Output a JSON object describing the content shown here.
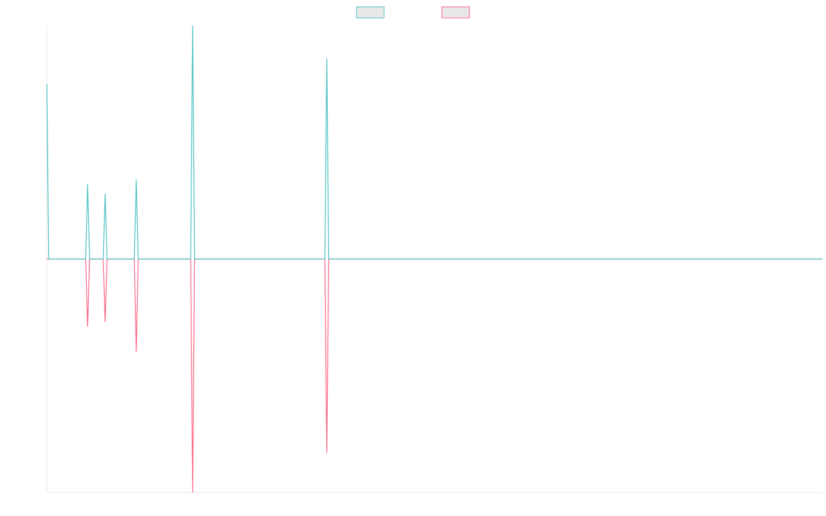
{
  "chart_data": {
    "type": "line",
    "title": "",
    "xlabel": "",
    "ylabel": "",
    "legend_placement": "top-center",
    "grid": false,
    "ylim": [
      -1.0,
      1.0
    ],
    "x": [
      0,
      1,
      20,
      21,
      22,
      29,
      30,
      31,
      45,
      46,
      47,
      74,
      75,
      76,
      143,
      144,
      145,
      399
    ],
    "series": [
      {
        "color": "#4bc0c0",
        "fill": "#e8e8e8",
        "values": [
          0.75,
          0.0,
          0.0,
          0.32,
          0.0,
          0.0,
          0.28,
          0.0,
          0.0,
          0.34,
          0.0,
          0.0,
          1.0,
          0.0,
          0.0,
          0.86,
          0.0,
          0.0
        ]
      },
      {
        "color": "#ff6384",
        "fill": "#e8e8e8",
        "values": [
          0.0,
          0.0,
          0.0,
          -0.29,
          0.0,
          0.0,
          -0.27,
          0.0,
          0.0,
          -0.4,
          0.0,
          0.0,
          -1.0,
          0.0,
          0.0,
          -0.83,
          0.0,
          0.0
        ]
      }
    ]
  }
}
